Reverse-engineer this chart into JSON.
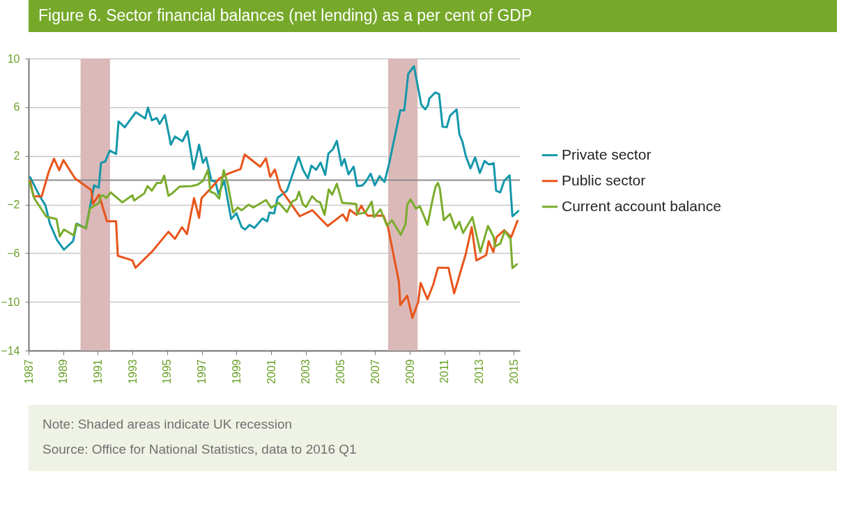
{
  "chart_data": {
    "type": "line",
    "title": "Figure 6. Sector financial balances (net lending) as a per cent of GDP",
    "xlim": [
      1987,
      2015.35
    ],
    "xticks": [
      1987,
      1989,
      1991,
      1993,
      1995,
      1997,
      1999,
      2001,
      2003,
      2005,
      2007,
      2009,
      2011,
      2013,
      2015
    ],
    "ylim": [
      -14,
      10
    ],
    "yticks": [
      -14,
      -10,
      -6,
      -2,
      2,
      6,
      10
    ],
    "grid": "y",
    "legend": "right",
    "line_style": "solid",
    "marker": "none",
    "bands": [
      {
        "axis": "x",
        "from": 1990.0,
        "to": 1991.7,
        "color": "#dbb9b9"
      },
      {
        "axis": "x",
        "from": 2007.75,
        "to": 2009.45,
        "color": "#dbb9b9"
      }
    ],
    "ref_lines": [
      {
        "axis": "y",
        "value": 0,
        "color": "#8c8c8c"
      }
    ],
    "annotations": [
      "Note: Shaded areas indicate UK recession",
      "Source: Office for National Statistics, data to 2016 Q1"
    ],
    "series": [
      {
        "name": "Private sector",
        "color": "#1497aa",
        "x": [
          1987.09,
          1987.63,
          1987.97,
          1988.23,
          1988.64,
          1989.04,
          1989.57,
          1989.78,
          1990.31,
          1990.78,
          1991.05,
          1991.18,
          1991.42,
          1991.69,
          1992.05,
          1992.19,
          1992.55,
          1993.19,
          1993.73,
          1993.89,
          1994.11,
          1994.4,
          1994.56,
          1994.87,
          1995.21,
          1995.45,
          1995.88,
          1996.17,
          1996.52,
          1996.84,
          1997.06,
          1997.25,
          1997.55,
          1997.78,
          1997.96,
          1998.29,
          1998.69,
          1998.99,
          1999.3,
          1999.5,
          1999.76,
          2000.03,
          2000.5,
          2000.77,
          2000.9,
          2001.17,
          2001.37,
          2001.91,
          2002.58,
          2002.85,
          2003.12,
          2003.32,
          2003.59,
          2003.85,
          2004.12,
          2004.3,
          2004.56,
          2004.79,
          2005.06,
          2005.23,
          2005.46,
          2005.76,
          2005.96,
          2006.27,
          2006.47,
          2006.74,
          2006.98,
          2007.25,
          2007.54,
          2007.81,
          2008.45,
          2008.68,
          2008.91,
          2009.24,
          2009.66,
          2009.89,
          2010.06,
          2010.12,
          2010.46,
          2010.69,
          2010.89,
          2011.13,
          2011.32,
          2011.7,
          2011.86,
          2012.03,
          2012.23,
          2012.5,
          2012.77,
          2013.04,
          2013.31,
          2013.57,
          2013.84,
          2013.98,
          2014.22,
          2014.45,
          2014.76,
          2014.92,
          2015.26
        ],
        "values": [
          0.25,
          -1.28,
          -2.05,
          -3.57,
          -4.91,
          -5.71,
          -5.0,
          -3.57,
          -3.96,
          -0.42,
          -0.61,
          1.43,
          1.54,
          2.44,
          2.15,
          4.83,
          4.35,
          5.59,
          5.07,
          5.97,
          4.92,
          5.11,
          4.63,
          5.36,
          2.92,
          3.59,
          3.2,
          4.03,
          0.91,
          2.92,
          1.43,
          1.87,
          -0.04,
          -0.1,
          -1.13,
          -0.04,
          -3.19,
          -2.71,
          -3.86,
          -4.05,
          -3.67,
          -3.92,
          -3.15,
          -3.38,
          -2.66,
          -2.73,
          -1.44,
          -0.86,
          1.92,
          0.82,
          0.15,
          1.2,
          0.85,
          1.45,
          0.44,
          2.19,
          2.54,
          3.24,
          1.2,
          1.74,
          0.48,
          1.11,
          -0.48,
          -0.42,
          -0.1,
          0.53,
          -0.42,
          0.34,
          -0.14,
          1.39,
          5.74,
          5.74,
          8.74,
          9.37,
          6.2,
          5.82,
          6.2,
          6.7,
          7.21,
          7.08,
          4.4,
          4.35,
          5.3,
          5.82,
          3.78,
          3.2,
          2.0,
          0.97,
          1.87,
          0.59,
          1.58,
          1.29,
          1.39,
          -0.86,
          -1.0,
          -0.04,
          0.4,
          -2.96,
          -2.53
        ]
      },
      {
        "name": "Public sector",
        "color": "#e8541a",
        "x": [
          1987.09,
          1987.29,
          1987.76,
          1988.17,
          1988.47,
          1988.77,
          1989.01,
          1989.68,
          1990.62,
          1990.71,
          1991.07,
          1991.52,
          1992.05,
          1992.15,
          1992.99,
          1993.17,
          1994.13,
          1995.07,
          1995.45,
          1995.85,
          1996.14,
          1996.55,
          1996.84,
          1996.98,
          1997.49,
          1998.02,
          1998.49,
          1999.23,
          1999.47,
          2000.37,
          2000.7,
          2000.94,
          2001.21,
          2001.53,
          2002.65,
          2003.38,
          2004.26,
          2005.13,
          2005.37,
          2005.53,
          2005.93,
          2006.2,
          2006.4,
          2006.57,
          2007.48,
          2007.74,
          2008.37,
          2008.45,
          2008.85,
          2009.15,
          2009.49,
          2009.62,
          2010.02,
          2010.36,
          2010.62,
          2011.23,
          2011.56,
          2012.23,
          2012.57,
          2012.84,
          2013.41,
          2013.55,
          2013.82,
          2014.0,
          2014.45,
          2014.85,
          2015.21
        ],
        "values": [
          -0.04,
          -1.32,
          -1.32,
          0.72,
          1.77,
          0.82,
          1.66,
          0.15,
          -0.81,
          -1.95,
          -1.19,
          -3.38,
          -3.38,
          -6.21,
          -6.59,
          -7.2,
          -5.86,
          -4.24,
          -4.82,
          -3.86,
          -4.43,
          -1.47,
          -3.1,
          -1.47,
          -0.71,
          0.15,
          0.53,
          0.91,
          2.11,
          1.11,
          1.81,
          0.28,
          0.88,
          -0.71,
          -2.96,
          -2.47,
          -3.76,
          -2.81,
          -3.34,
          -2.43,
          -2.85,
          -2.09,
          -2.62,
          -2.91,
          -2.91,
          -3.86,
          -8.35,
          -10.26,
          -9.49,
          -11.31,
          -9.97,
          -8.44,
          -9.78,
          -8.54,
          -7.2,
          -7.2,
          -9.3,
          -6.05,
          -3.86,
          -6.59,
          -6.15,
          -5.01,
          -5.91,
          -4.68,
          -4.11,
          -4.68,
          -3.34
        ]
      },
      {
        "name": "Current account balance",
        "color": "#7aac2c",
        "x": [
          1987.05,
          1987.32,
          1988.03,
          1988.61,
          1988.8,
          1989.04,
          1989.61,
          1989.74,
          1990.31,
          1990.54,
          1991.07,
          1991.15,
          1991.31,
          1991.48,
          1991.74,
          1992.41,
          1992.99,
          1993.09,
          1993.67,
          1993.87,
          1994.11,
          1994.4,
          1994.64,
          1994.83,
          1995.07,
          1995.31,
          1995.72,
          1996.41,
          1996.75,
          1997.08,
          1997.35,
          1997.49,
          1997.75,
          1998.0,
          1998.26,
          1998.49,
          1998.8,
          1999.07,
          1999.3,
          1999.7,
          1999.97,
          2000.7,
          2001.0,
          2001.44,
          2001.91,
          2002.21,
          2002.45,
          2002.61,
          2002.82,
          2003.01,
          2003.36,
          2003.62,
          2003.82,
          2004.08,
          2004.32,
          2004.52,
          2004.79,
          2005.1,
          2005.91,
          2005.96,
          2006.44,
          2006.8,
          2006.94,
          2007.3,
          2007.68,
          2007.97,
          2008.48,
          2008.75,
          2008.85,
          2009.04,
          2009.35,
          2009.58,
          2010.02,
          2010.33,
          2010.49,
          2010.62,
          2010.73,
          2010.96,
          2011.32,
          2011.63,
          2011.86,
          2012.07,
          2012.61,
          2013.07,
          2013.51,
          2013.84,
          2013.91,
          2014.22,
          2014.48,
          2014.81,
          2014.92,
          2015.18
        ],
        "values": [
          -0.1,
          -1.47,
          -3.0,
          -3.19,
          -4.62,
          -4.05,
          -4.53,
          -3.61,
          -3.96,
          -2.33,
          -1.86,
          -1.32,
          -1.24,
          -1.47,
          -1.0,
          -1.82,
          -1.24,
          -1.67,
          -1.09,
          -0.48,
          -0.86,
          -0.23,
          -0.23,
          0.38,
          -1.28,
          -1.05,
          -0.52,
          -0.48,
          -0.37,
          -0.04,
          0.85,
          -0.94,
          -1.09,
          -1.51,
          0.82,
          -0.29,
          -2.66,
          -2.24,
          -2.47,
          -2.01,
          -2.24,
          -1.63,
          -2.27,
          -1.86,
          -2.62,
          -1.76,
          -1.57,
          -0.94,
          -1.95,
          -2.2,
          -1.32,
          -1.7,
          -1.82,
          -2.85,
          -0.75,
          -1.19,
          -0.29,
          -1.86,
          -1.95,
          -2.77,
          -2.66,
          -1.76,
          -3.04,
          -2.39,
          -3.73,
          -3.29,
          -4.49,
          -3.61,
          -2.01,
          -1.57,
          -2.33,
          -2.14,
          -3.67,
          -1.47,
          -0.52,
          -0.23,
          -0.67,
          -3.29,
          -2.77,
          -3.99,
          -3.42,
          -4.34,
          -3.04,
          -5.9,
          -3.76,
          -4.68,
          -5.45,
          -5.2,
          -4.19,
          -4.82,
          -7.22,
          -6.91
        ]
      }
    ]
  }
}
